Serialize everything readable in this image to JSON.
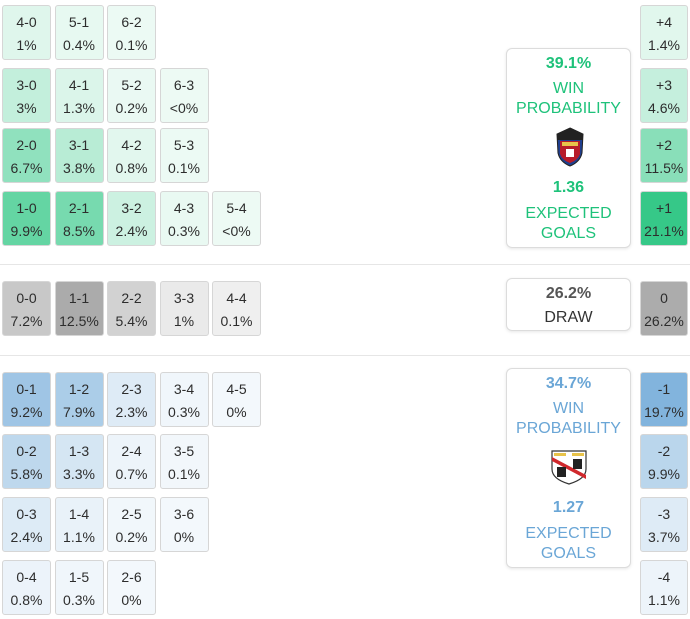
{
  "colors": {
    "home": "#1ec27a",
    "draw": "#7d7d7d",
    "away": "#6aa6d6"
  },
  "home": {
    "win_probability": "39.1%",
    "win_label_1": "WIN",
    "win_label_2": "PROBABILITY",
    "expected_goals": "1.36",
    "xg_label_1": "EXPECTED",
    "xg_label_2": "GOALS",
    "crest_icon": "levante-crest-icon"
  },
  "draw": {
    "probability": "26.2%",
    "label": "DRAW"
  },
  "away": {
    "win_probability": "34.7%",
    "win_label_1": "WIN",
    "win_label_2": "PROBABILITY",
    "expected_goals": "1.27",
    "xg_label_1": "EXPECTED",
    "xg_label_2": "GOALS",
    "crest_icon": "rayo-vallecano-crest-icon"
  },
  "chart_data": {
    "type": "table",
    "home_scores": [
      {
        "score": "4-0",
        "prob": "1%"
      },
      {
        "score": "5-1",
        "prob": "0.4%"
      },
      {
        "score": "6-2",
        "prob": "0.1%"
      },
      {
        "score": "3-0",
        "prob": "3%"
      },
      {
        "score": "4-1",
        "prob": "1.3%"
      },
      {
        "score": "5-2",
        "prob": "0.2%"
      },
      {
        "score": "6-3",
        "prob": "<0%"
      },
      {
        "score": "2-0",
        "prob": "6.7%"
      },
      {
        "score": "3-1",
        "prob": "3.8%"
      },
      {
        "score": "4-2",
        "prob": "0.8%"
      },
      {
        "score": "5-3",
        "prob": "0.1%"
      },
      {
        "score": "1-0",
        "prob": "9.9%"
      },
      {
        "score": "2-1",
        "prob": "8.5%"
      },
      {
        "score": "3-2",
        "prob": "2.4%"
      },
      {
        "score": "4-3",
        "prob": "0.3%"
      },
      {
        "score": "5-4",
        "prob": "<0%"
      }
    ],
    "draw_scores": [
      {
        "score": "0-0",
        "prob": "7.2%"
      },
      {
        "score": "1-1",
        "prob": "12.5%"
      },
      {
        "score": "2-2",
        "prob": "5.4%"
      },
      {
        "score": "3-3",
        "prob": "1%"
      },
      {
        "score": "4-4",
        "prob": "0.1%"
      }
    ],
    "away_scores": [
      {
        "score": "0-1",
        "prob": "9.2%"
      },
      {
        "score": "1-2",
        "prob": "7.9%"
      },
      {
        "score": "2-3",
        "prob": "2.3%"
      },
      {
        "score": "3-4",
        "prob": "0.3%"
      },
      {
        "score": "4-5",
        "prob": "0%"
      },
      {
        "score": "0-2",
        "prob": "5.8%"
      },
      {
        "score": "1-3",
        "prob": "3.3%"
      },
      {
        "score": "2-4",
        "prob": "0.7%"
      },
      {
        "score": "3-5",
        "prob": "0.1%"
      },
      {
        "score": "0-3",
        "prob": "2.4%"
      },
      {
        "score": "1-4",
        "prob": "1.1%"
      },
      {
        "score": "2-5",
        "prob": "0.2%"
      },
      {
        "score": "3-6",
        "prob": "0%"
      },
      {
        "score": "0-4",
        "prob": "0.8%"
      },
      {
        "score": "1-5",
        "prob": "0.3%"
      },
      {
        "score": "2-6",
        "prob": "0%"
      }
    ],
    "margins": [
      {
        "margin": "+4",
        "prob": "1.4%"
      },
      {
        "margin": "+3",
        "prob": "4.6%"
      },
      {
        "margin": "+2",
        "prob": "11.5%"
      },
      {
        "margin": "+1",
        "prob": "21.1%"
      },
      {
        "margin": "0",
        "prob": "26.2%"
      },
      {
        "margin": "-1",
        "prob": "19.7%"
      },
      {
        "margin": "-2",
        "prob": "9.9%"
      },
      {
        "margin": "-3",
        "prob": "3.7%"
      },
      {
        "margin": "-4",
        "prob": "1.1%"
      }
    ]
  }
}
